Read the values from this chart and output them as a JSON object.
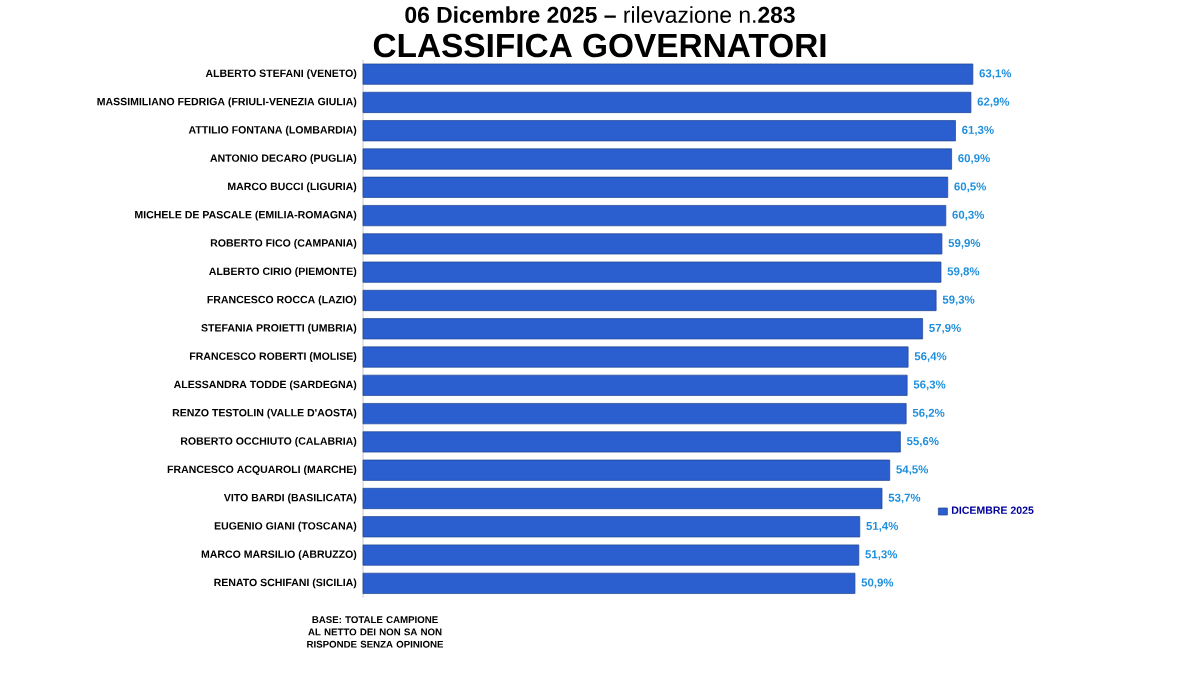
{
  "chart_data": {
    "type": "bar",
    "orientation": "horizontal",
    "title": "CLASSIFICA GOVERNATORI",
    "subtitle": "**06 Dicembre 2025 –** rilevazione n.**283**",
    "categories": [
      "ALBERTO STEFANI (VENETO)",
      "MASSIMILIANO FEDRIGA (FRIULI-VENEZIA GIULIA)",
      "ATTILIO FONTANA (LOMBARDIA)",
      "ANTONIO DECARO (PUGLIA)",
      "MARCO BUCCI (LIGURIA)",
      "MICHELE DE PASCALE (EMILIA-ROMAGNA)",
      "ROBERTO FICO (CAMPANIA)",
      "ALBERTO CIRIO (PIEMONTE)",
      "FRANCESCO ROCCA (LAZIO)",
      "STEFANIA PROIETTI (UMBRIA)",
      "FRANCESCO ROBERTI (MOLISE)",
      "ALESSANDRA TODDE (SARDEGNA)",
      "RENZO TESTOLIN (VALLE D'AOSTA)",
      "ROBERTO OCCHIUTO (CALABRIA)",
      "FRANCESCO ACQUAROLI (MARCHE)",
      "VITO BARDI (BASILICATA)",
      "EUGENIO GIANI (TOSCANA)",
      "MARCO MARSILIO (ABRUZZO)",
      "RENATO SCHIFANI (SICILIA)"
    ],
    "series": [
      {
        "name": "DICEMBRE 2025",
        "color": "#2b5fcf",
        "values": [
          63.1,
          62.9,
          61.3,
          60.9,
          60.5,
          60.3,
          59.9,
          59.8,
          59.3,
          57.9,
          56.4,
          56.3,
          56.2,
          55.6,
          54.5,
          53.7,
          51.4,
          51.3,
          50.9
        ],
        "value_labels": [
          "63,1%",
          "62,9%",
          "61,3%",
          "60,9%",
          "60,5%",
          "60,3%",
          "59,9%",
          "59,8%",
          "59,3%",
          "57,9%",
          "56,4%",
          "56,3%",
          "56,2%",
          "55,6%",
          "54,5%",
          "53,7%",
          "51,4%",
          "51,3%",
          "50,9%"
        ]
      }
    ],
    "legend": "right",
    "annotations": [
      "BASE: TOTALE CAMPIONE AL NETTO DEI NON SA NON RISPONDE SENZA OPINIONE"
    ]
  }
}
